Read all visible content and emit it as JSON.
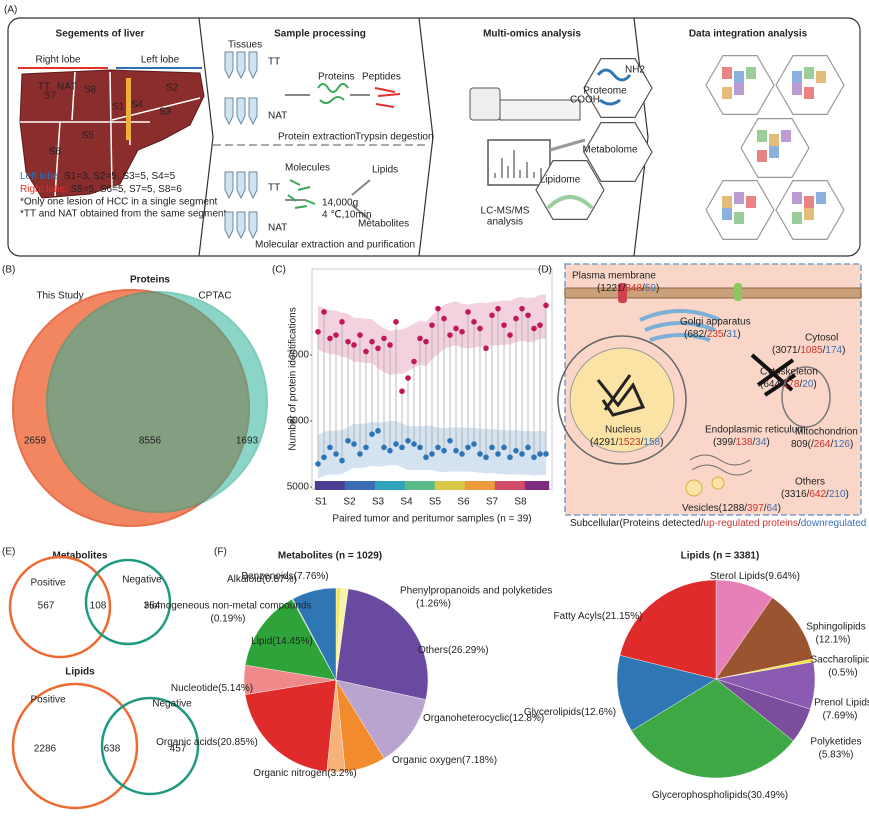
{
  "panel_a": {
    "label": "(A)",
    "liver": {
      "title": "Segements of liver",
      "right": "Right lobe",
      "left": "Left lobe",
      "segments": [
        "S1",
        "S2",
        "S3",
        "S4",
        "S5",
        "S6",
        "S7",
        "S8"
      ],
      "tt": "TT",
      "nat": "NAT",
      "left_counts": [
        "Left lobe:",
        " S1=3, S2=5, S3=5, S4=5"
      ],
      "right_counts": [
        "Right lobe:",
        " S5=5, S6=5, S7=5, S8=6"
      ],
      "notes": [
        "*Only one lesion of HCC in a single segment",
        "*TT and NAT obtained from the same segment"
      ]
    },
    "processing": {
      "title": "Sample processing",
      "labels": [
        "Tissues",
        "TT",
        "NAT",
        "Proteins",
        "Peptides",
        "Protein extraction",
        "Trypsin degestion",
        "Molecules",
        "TT",
        "NAT",
        "14,000g",
        "4 ℃,10min",
        "Lipids",
        "Metabolites",
        "Molecular extraction and purification"
      ]
    },
    "omics": {
      "title": "Multi-omics analysis",
      "labels": [
        "Proteome",
        "Metabolome",
        "Lipidome",
        "LC-MS/MS",
        "analysis",
        "NH2",
        "COOH"
      ]
    },
    "integration": {
      "title": "Data integration analysis"
    }
  },
  "venn_b": {
    "label": "(B)",
    "title": "Proteins",
    "sets": [
      "This Study",
      "CPTAC"
    ],
    "counts": [
      2659,
      8556,
      1693
    ]
  },
  "panel_d": {
    "label": "(D)",
    "compartments": [
      {
        "name": "Plasma membrane",
        "counts": [
          "(1221/",
          "348",
          "/",
          "59",
          ")"
        ]
      },
      {
        "name": "Golgi apparatus",
        "counts": [
          "(682/",
          "235",
          "/",
          "31",
          ")"
        ]
      },
      {
        "name": "Cytosol",
        "counts": [
          "(3071/",
          "1085",
          "/",
          "174",
          ")"
        ]
      },
      {
        "name": "Cytoskeleton",
        "counts": [
          "(644/",
          "178",
          "/",
          "20",
          ")"
        ]
      },
      {
        "name": "Nucleus",
        "counts": [
          "(4291/",
          "1523",
          "/",
          "158",
          ")"
        ]
      },
      {
        "name": "Endoplasmic reticulum",
        "counts": [
          "(399/",
          "138",
          "/",
          "34",
          ")"
        ]
      },
      {
        "name": "Mitochondrion",
        "counts": [
          "809(/",
          "264",
          "/",
          "126",
          ")"
        ]
      },
      {
        "name": "Others",
        "counts": [
          "(3316/",
          "642",
          "/",
          "210",
          ")"
        ]
      },
      {
        "counts": [
          "Vesicles(1288/",
          "397",
          "/",
          "64",
          ")"
        ]
      }
    ],
    "caption": [
      "Subcellular(Proteins detected/",
      "up-regulated proteins",
      "/",
      "downregulated proteins",
      ")"
    ]
  },
  "venn_e": {
    "label": "(E)",
    "diagrams": [
      {
        "title": "Metabolites",
        "sets": [
          "Positive",
          "Negative"
        ],
        "counts": [
          567,
          108,
          354
        ]
      },
      {
        "title": "Lipids",
        "sets": [
          "Positive",
          "Negative"
        ],
        "counts": [
          2286,
          638,
          457
        ]
      }
    ]
  },
  "panel_f": {
    "label": "(F)"
  },
  "chart_data": [
    {
      "type": "dot",
      "label": "(C)",
      "x_label": "Paired tumor and peritumor samples (n = 39)",
      "y_label": "Number of protein identifications",
      "categories": [
        null,
        null,
        null,
        null,
        null,
        null,
        null,
        null,
        null,
        null,
        null,
        null,
        null,
        null,
        null,
        null,
        null,
        null,
        null,
        null,
        null,
        null,
        null,
        null,
        null,
        null,
        null,
        null,
        null,
        null,
        null,
        null,
        null,
        null,
        null,
        null,
        null,
        null,
        null
      ],
      "groups": [
        "S1",
        "S2",
        "S3",
        "S4",
        "S5",
        "S6",
        "S7",
        "S8"
      ],
      "series": [
        {
          "color": "#c2185b",
          "values": [
            7350,
            7650,
            7250,
            7300,
            7500,
            7200,
            7150,
            7300,
            7050,
            7200,
            7100,
            7250,
            7150,
            7500,
            6450,
            6650,
            6900,
            7250,
            7200,
            7450,
            7700,
            7550,
            7300,
            7400,
            7350,
            7650,
            7500,
            7400,
            7100,
            7600,
            7700,
            7450,
            7300,
            7550,
            7700,
            7600,
            7400,
            7450,
            7750
          ]
        },
        {
          "color": "#2e75b6",
          "values": [
            5350,
            5450,
            5600,
            5500,
            5400,
            5700,
            5650,
            5500,
            5600,
            5800,
            5850,
            5600,
            5550,
            5650,
            5600,
            5700,
            5650,
            5600,
            5450,
            5500,
            5600,
            5550,
            5700,
            5550,
            5500,
            5600,
            5650,
            5500,
            5450,
            5600,
            5500,
            5600,
            5450,
            5550,
            5500,
            5600,
            5450,
            5500,
            5500
          ]
        }
      ],
      "ylim": [
        4970,
        8300
      ],
      "yticks": [
        5000,
        6000,
        7000
      ]
    },
    {
      "type": "pie",
      "title": "Metabolites (n = 1029)",
      "categories": [
        "Alkaloid",
        "Phenylpropanoids and polyketides",
        "Others",
        "Organoheterocyclic",
        "Organic oxygen",
        "Organic nitrogen",
        "Organic acids",
        "Nucleotide",
        "Lipid",
        "Homogeneous non-metal compounds",
        "Benzenoids"
      ],
      "values": [
        0.87,
        1.26,
        26.29,
        12.8,
        7.18,
        3.2,
        20.85,
        5.14,
        14.45,
        0.19,
        7.76
      ],
      "value_labels": [
        "(0.87%)",
        "(1.26%)",
        "(26.29%)",
        "(12.8%)",
        "(7.18%)",
        "(3.2%)",
        "(20.85%)",
        "(5.14%)",
        "(14.45%)",
        "(0.19%)",
        "(7.76%)"
      ],
      "colors": [
        "#f2e55c",
        "#f7f3a8",
        "#6a4aa0",
        "#b9a3cf",
        "#f28a2e",
        "#f7b27a",
        "#e02b2b",
        "#f08a8a",
        "#2ea33a",
        "#9fd19b",
        "#2f76b5"
      ]
    },
    {
      "type": "pie",
      "title": "Lipids (n = 3381)",
      "categories": [
        "Sterol Lipids",
        "Sphingolipids",
        "Saccharolipids",
        "Prenol Lipids",
        "Polyketides",
        "Glycerophospholipids",
        "Glycerolipids",
        "Fatty Acyls"
      ],
      "values": [
        9.64,
        12.1,
        0.5,
        7.69,
        5.83,
        30.49,
        12.6,
        21.15
      ],
      "value_labels": [
        "(9.64%)",
        "(12.1%)",
        "(0.5%)",
        "(7.69%)",
        "(5.83%)",
        "(30.49%)",
        "(12.6%)",
        "(21.15%)"
      ],
      "colors": [
        "#e77fb8",
        "#9a5530",
        "#f2e535",
        "#8a5bb0",
        "#7a4e9c",
        "#3ea845",
        "#2f76b5",
        "#e02b2b"
      ]
    }
  ]
}
